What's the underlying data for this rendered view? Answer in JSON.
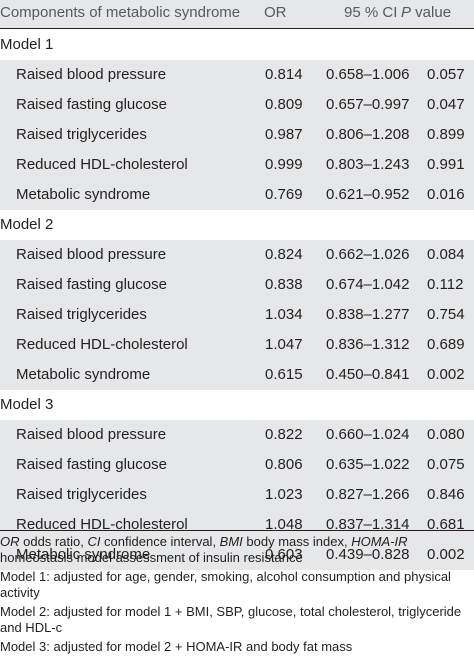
{
  "table": {
    "headers": {
      "component": "Components of metabolic syndrome",
      "or": "OR",
      "ci": "95 % CI",
      "p_italic": "P",
      "p_rest": " value"
    },
    "models": [
      {
        "name": "Model 1",
        "rows": [
          {
            "component": "Raised blood pressure",
            "or": "0.814",
            "ci": "0.658–1.006",
            "p": "0.057"
          },
          {
            "component": "Raised fasting glucose",
            "or": "0.809",
            "ci": "0.657–0.997",
            "p": "0.047"
          },
          {
            "component": "Raised triglycerides",
            "or": "0.987",
            "ci": "0.806–1.208",
            "p": "0.899"
          },
          {
            "component": "Reduced HDL-cholesterol",
            "or": "0.999",
            "ci": "0.803–1.243",
            "p": "0.991"
          },
          {
            "component": "Metabolic syndrome",
            "or": "0.769",
            "ci": "0.621–0.952",
            "p": "0.016"
          }
        ]
      },
      {
        "name": "Model 2",
        "rows": [
          {
            "component": "Raised blood pressure",
            "or": "0.824",
            "ci": "0.662–1.026",
            "p": "0.084"
          },
          {
            "component": "Raised fasting glucose",
            "or": "0.838",
            "ci": "0.674–1.042",
            "p": "0.112"
          },
          {
            "component": "Raised triglycerides",
            "or": "1.034",
            "ci": "0.838–1.277",
            "p": "0.754"
          },
          {
            "component": "Reduced HDL-cholesterol",
            "or": "1.047",
            "ci": "0.836–1.312",
            "p": "0.689"
          },
          {
            "component": "Metabolic syndrome",
            "or": "0.615",
            "ci": "0.450–0.841",
            "p": "0.002"
          }
        ]
      },
      {
        "name": "Model 3",
        "rows": [
          {
            "component": "Raised blood pressure",
            "or": "0.822",
            "ci": "0.660–1.024",
            "p": "0.080"
          },
          {
            "component": "Raised fasting glucose",
            "or": "0.806",
            "ci": "0.635–1.022",
            "p": "0.075"
          },
          {
            "component": "Raised triglycerides",
            "or": "1.023",
            "ci": "0.827–1.266",
            "p": "0.846"
          },
          {
            "component": "Reduced HDL-cholesterol",
            "or": "1.048",
            "ci": "0.837–1.314",
            "p": "0.681"
          },
          {
            "component": "Metabolic syndrome",
            "or": "0.603",
            "ci": "0.439–0.828",
            "p": "0.002"
          }
        ]
      }
    ]
  },
  "footnotes": {
    "abbrev": {
      "or_abbr": "OR",
      "or_def": " odds ratio, ",
      "ci_abbr": "CI",
      "ci_def": " confidence interval, ",
      "bmi_abbr": "BMI",
      "bmi_def": " body mass index, ",
      "homa_abbr": "HOMA-IR",
      "homa_def": " homeostasis model assessment of insulin resistance"
    },
    "model1": "Model 1: adjusted for age, gender, smoking, alcohol consumption and physical activity",
    "model2": "Model 2: adjusted for model 1 + BMI, SBP, glucose, total cholesterol, triglyceride and HDL-c",
    "model3": "Model 3: adjusted for model 2 + HOMA-IR and body fat mass"
  },
  "colors": {
    "row_shade": "#e6e7e8",
    "text": "#231f20",
    "header_text": "#58595b"
  }
}
